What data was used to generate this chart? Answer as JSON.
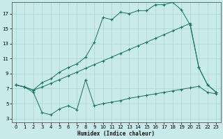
{
  "xlabel": "Humidex (Indice chaleur)",
  "bg_color": "#c8eaea",
  "grid_color": "#aed4d4",
  "line_color": "#1a7060",
  "xlim": [
    -0.5,
    23.5
  ],
  "ylim": [
    2.5,
    18.5
  ],
  "xticks": [
    0,
    1,
    2,
    3,
    4,
    5,
    6,
    7,
    8,
    9,
    10,
    11,
    12,
    13,
    14,
    15,
    16,
    17,
    18,
    19,
    20,
    21,
    22,
    23
  ],
  "yticks": [
    3,
    5,
    7,
    9,
    11,
    13,
    15,
    17
  ],
  "line_top_x": [
    0,
    1,
    2,
    3,
    4,
    5,
    6,
    7,
    8,
    9,
    10,
    11,
    12,
    13,
    14,
    15,
    16,
    17,
    18,
    19,
    20,
    21,
    22,
    23
  ],
  "line_top_y": [
    7.5,
    7.2,
    6.8,
    7.8,
    8.3,
    9.2,
    9.8,
    10.3,
    11.2,
    13.2,
    16.5,
    16.2,
    17.2,
    17.0,
    17.4,
    17.4,
    18.2,
    18.2,
    18.5,
    17.5,
    15.5,
    9.8,
    7.5,
    6.5
  ],
  "line_mid_x": [
    0,
    1,
    2,
    3,
    4,
    5,
    6,
    7,
    8,
    9,
    10,
    11,
    12,
    13,
    14,
    15,
    16,
    17,
    18,
    19,
    20,
    21,
    22,
    23
  ],
  "line_mid_y": [
    7.5,
    7.2,
    6.8,
    7.2,
    7.7,
    8.2,
    8.7,
    9.2,
    9.7,
    10.2,
    10.7,
    11.2,
    11.7,
    12.2,
    12.7,
    13.2,
    13.7,
    14.2,
    14.7,
    15.2,
    15.7,
    9.8,
    7.5,
    6.5
  ],
  "line_bot_x": [
    0,
    1,
    2,
    3,
    4,
    5,
    6,
    7,
    8,
    9,
    10,
    11,
    12,
    13,
    14,
    15,
    16,
    17,
    18,
    19,
    20,
    21,
    22,
    23
  ],
  "line_bot_y": [
    7.5,
    7.2,
    6.5,
    3.8,
    3.5,
    4.3,
    4.7,
    4.2,
    8.2,
    4.7,
    5.0,
    5.2,
    5.4,
    5.7,
    5.9,
    6.1,
    6.3,
    6.5,
    6.7,
    6.9,
    7.1,
    7.3,
    6.5,
    6.3
  ]
}
